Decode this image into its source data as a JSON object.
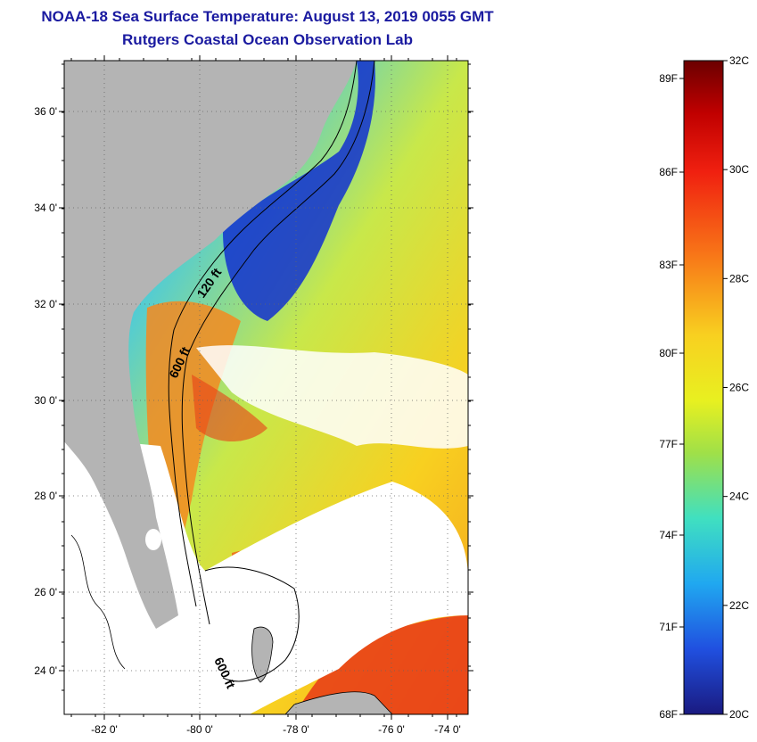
{
  "header": {
    "title": "NOAA-18 Sea Surface Temperature:  August 13, 2019 0055 GMT",
    "subtitle": "Rutgers Coastal Ocean Observation Lab"
  },
  "map": {
    "lat_ticks": [
      "36 0'",
      "34 0'",
      "32 0'",
      "30 0'",
      "28 0'",
      "26 0'",
      "24 0'"
    ],
    "lon_ticks": [
      "-82 0'",
      "-80 0'",
      "-78 0'",
      "-76 0'",
      "-74 0'"
    ],
    "contours": [
      "120 ft",
      "600 ft",
      "600 ft"
    ],
    "colors": {
      "land": "#b4b4b4",
      "cloud": "#ffffff",
      "frame": "#000000"
    }
  },
  "colorbar": {
    "celsius": [
      "32C",
      "30C",
      "28C",
      "26C",
      "24C",
      "22C",
      "20C"
    ],
    "fahrenheit": [
      "89F",
      "86F",
      "83F",
      "80F",
      "77F",
      "74F",
      "71F",
      "68F"
    ],
    "range_c": [
      20,
      32
    ]
  }
}
